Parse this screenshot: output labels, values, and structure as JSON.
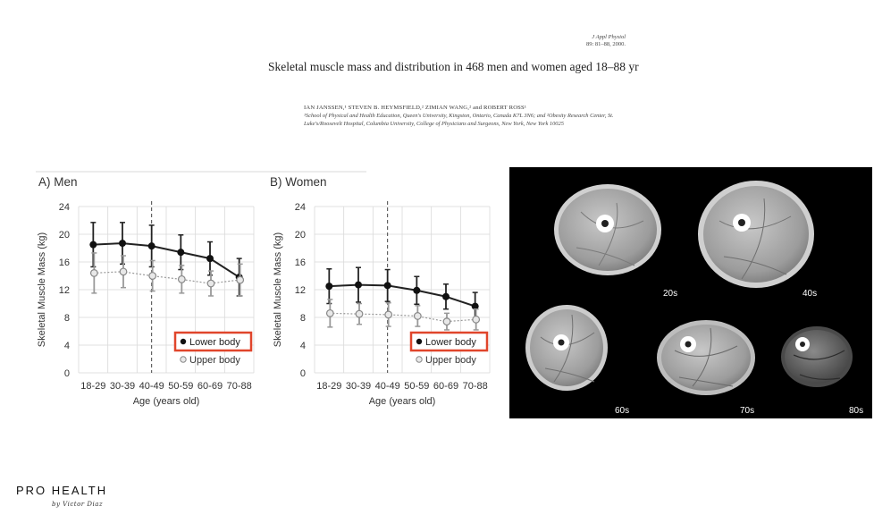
{
  "paper": {
    "journal": "J Appl Physiol",
    "volume": "89: 81–88, 2000.",
    "title": "Skeletal muscle mass and distribution in 468 men and women aged 18–88 yr",
    "authors": "IAN JANSSEN,¹ STEVEN B. HEYMSFIELD,² ZIMIAN WANG,² and ROBERT ROSS¹",
    "affiliation": "¹School of Physical and Health Education, Queen's University, Kingston, Ontario, Canada K7L 3N6; and ²Obesity Research Center, St. Luke's/Roosevelt Hospital, Columbia University, College of Physicians and Surgeons, New York, New York 10025"
  },
  "chart_data": [
    {
      "type": "line",
      "title": "A) Men",
      "xlabel": "Age (years old)",
      "ylabel": "Skeletal Muscle Mass (kg)",
      "categories": [
        "18-29",
        "30-39",
        "40-49",
        "50-59",
        "60-69",
        "70-88"
      ],
      "ylim": [
        0,
        24
      ],
      "yticks": [
        0,
        4,
        8,
        12,
        16,
        20,
        24
      ],
      "grid": true,
      "legend_position": "bottom-right",
      "series": [
        {
          "name": "Lower body",
          "values": [
            18.5,
            18.7,
            18.3,
            17.4,
            16.5,
            13.8
          ],
          "errors": [
            3.2,
            3.0,
            3.0,
            2.5,
            2.4,
            2.7
          ],
          "color": "#222222",
          "style": "solid"
        },
        {
          "name": "Upper body",
          "values": [
            14.4,
            14.6,
            14.0,
            13.5,
            12.9,
            13.4
          ],
          "errors": [
            2.9,
            2.3,
            2.2,
            2.0,
            1.8,
            2.3
          ],
          "color": "#999999",
          "style": "dotted"
        }
      ]
    },
    {
      "type": "line",
      "title": "B) Women",
      "xlabel": "Age (years old)",
      "ylabel": "Skeletal Muscle Mass (kg)",
      "categories": [
        "18-29",
        "30-39",
        "40-49",
        "50-59",
        "60-69",
        "70-88"
      ],
      "ylim": [
        0,
        24
      ],
      "yticks": [
        0,
        4,
        8,
        12,
        16,
        20,
        24
      ],
      "grid": true,
      "legend_position": "bottom-right",
      "series": [
        {
          "name": "Lower body",
          "values": [
            12.5,
            12.7,
            12.6,
            11.9,
            11.0,
            9.6
          ],
          "errors": [
            2.5,
            2.5,
            2.3,
            2.0,
            1.8,
            2.0
          ],
          "color": "#222222",
          "style": "solid"
        },
        {
          "name": "Upper body",
          "values": [
            8.6,
            8.5,
            8.4,
            8.2,
            7.4,
            7.7
          ],
          "errors": [
            2.0,
            1.5,
            1.7,
            1.5,
            1.2,
            1.5
          ],
          "color": "#999999",
          "style": "dotted"
        }
      ]
    }
  ],
  "ct_scans": {
    "labels": [
      "20s",
      "40s",
      "60s",
      "70s",
      "80s"
    ]
  },
  "brand": {
    "name": "PRO HEALTH",
    "byline": "by Victor Diaz"
  },
  "colors": {
    "legend_highlight": "#e0452b",
    "grid": "#d9d9d9"
  }
}
